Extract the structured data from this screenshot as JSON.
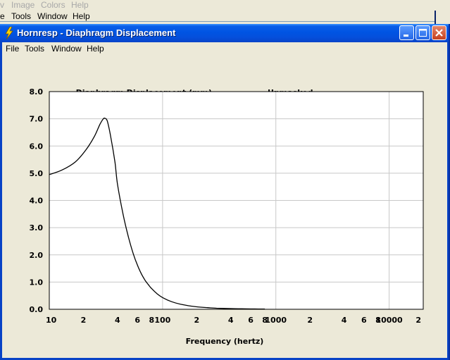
{
  "background_app": {
    "menu_row1": [
      "v",
      "Image",
      "Colors",
      "Help"
    ],
    "menu_row2": [
      "e",
      "Tools",
      "Window",
      "Help"
    ]
  },
  "window": {
    "title": "Hornresp - Diaphragm Displacement",
    "menu": [
      "File",
      "Tools",
      "Window",
      "Help"
    ]
  },
  "chart_data": {
    "type": "line",
    "title": "Diaphragm Displacement (mm)",
    "subtitle": "Unmasked",
    "xlabel": "Frequency (hertz)",
    "ylabel": "",
    "x_scale": "log",
    "xlim": [
      10,
      20000
    ],
    "ylim": [
      0,
      8
    ],
    "grid": true,
    "y_ticks": [
      "0.0",
      "1.0",
      "2.0",
      "3.0",
      "4.0",
      "5.0",
      "6.0",
      "7.0",
      "8.0"
    ],
    "x_ticks": [
      {
        "value": 10,
        "label": "10"
      },
      {
        "value": 20,
        "label": "2"
      },
      {
        "value": 40,
        "label": "4"
      },
      {
        "value": 60,
        "label": "6"
      },
      {
        "value": 80,
        "label": "8"
      },
      {
        "value": 100,
        "label": "100"
      },
      {
        "value": 200,
        "label": "2"
      },
      {
        "value": 400,
        "label": "4"
      },
      {
        "value": 600,
        "label": "6"
      },
      {
        "value": 800,
        "label": "8"
      },
      {
        "value": 1000,
        "label": "1000"
      },
      {
        "value": 2000,
        "label": "2"
      },
      {
        "value": 4000,
        "label": "4"
      },
      {
        "value": 6000,
        "label": "6"
      },
      {
        "value": 8000,
        "label": "8"
      },
      {
        "value": 10000,
        "label": "10000"
      },
      {
        "value": 20000,
        "label": "2"
      }
    ],
    "series": [
      {
        "x": [
          10,
          13,
          17,
          21,
          25,
          28,
          30,
          31,
          32,
          33,
          35,
          38,
          40,
          45,
          50,
          55,
          60,
          65,
          70,
          75,
          80,
          90,
          100,
          120,
          150,
          200,
          250,
          300,
          400,
          500,
          600,
          700,
          800
        ],
        "y": [
          4.95,
          5.12,
          5.42,
          5.85,
          6.35,
          6.8,
          7.0,
          7.02,
          6.98,
          6.82,
          6.3,
          5.4,
          4.6,
          3.45,
          2.65,
          2.05,
          1.62,
          1.3,
          1.07,
          0.9,
          0.76,
          0.56,
          0.43,
          0.28,
          0.17,
          0.09,
          0.06,
          0.04,
          0.025,
          0.018,
          0.013,
          0.01,
          0.008
        ]
      }
    ]
  }
}
